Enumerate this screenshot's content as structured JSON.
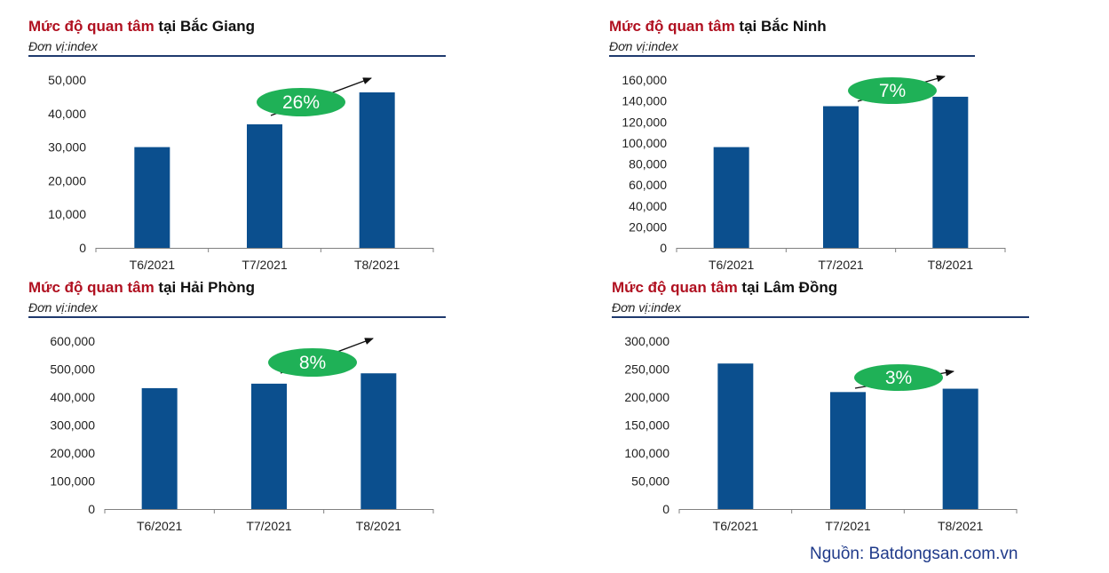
{
  "panels": [
    {
      "title_highlight": "Mức độ quan tâm",
      "title_rest": " tại Bắc Giang",
      "unit": "Đơn vị:index",
      "growth_label": "26%"
    },
    {
      "title_highlight": "Mức độ quan tâm",
      "title_rest": " tại Bắc Ninh",
      "unit": "Đơn vị:index",
      "growth_label": "7%"
    },
    {
      "title_highlight": "Mức độ quan tâm",
      "title_rest": " tại Hải Phòng",
      "unit": "Đơn vị:index",
      "growth_label": "8%"
    },
    {
      "title_highlight": "Mức độ quan tâm",
      "title_rest": " tại Lâm Đồng",
      "unit": "Đơn vị:index",
      "growth_label": "3%"
    }
  ],
  "source": "Nguồn: Batdongsan.com.vn",
  "colors": {
    "bar": "#0b4f8e",
    "title_highlight": "#b01020",
    "rule": "#1f3a6e",
    "growth_ellipse": "#1fb157",
    "source_text": "#1f3a8a"
  },
  "chart_data": [
    {
      "type": "bar",
      "title": "Mức độ quan tâm tại Bắc Giang",
      "categories": [
        "T6/2021",
        "T7/2021",
        "T8/2021"
      ],
      "values": [
        30000,
        36800,
        46300
      ],
      "ylim": [
        0,
        50000
      ],
      "yticks": [
        0,
        10000,
        20000,
        30000,
        40000,
        50000
      ],
      "ytick_labels": [
        "0",
        "10,000",
        "20,000",
        "30,000",
        "40,000",
        "50,000"
      ],
      "annotation": "26%",
      "grid": false
    },
    {
      "type": "bar",
      "title": "Mức độ quan tâm tại Bắc Ninh",
      "categories": [
        "T6/2021",
        "T7/2021",
        "T8/2021"
      ],
      "values": [
        96000,
        135000,
        144000
      ],
      "ylim": [
        0,
        160000
      ],
      "yticks": [
        0,
        20000,
        40000,
        60000,
        80000,
        100000,
        120000,
        140000,
        160000
      ],
      "ytick_labels": [
        "0",
        "20,000",
        "40,000",
        "60,000",
        "80,000",
        "100,000",
        "120,000",
        "140,000",
        "160,000"
      ],
      "annotation": "7%",
      "grid": false
    },
    {
      "type": "bar",
      "title": "Mức độ quan tâm tại Hải Phòng",
      "categories": [
        "T6/2021",
        "T7/2021",
        "T8/2021"
      ],
      "values": [
        432000,
        448000,
        485000
      ],
      "ylim": [
        0,
        600000
      ],
      "yticks": [
        0,
        100000,
        200000,
        300000,
        400000,
        500000,
        600000
      ],
      "ytick_labels": [
        "0",
        "100,000",
        "200,000",
        "300,000",
        "400,000",
        "500,000",
        "600,000"
      ],
      "annotation": "8%",
      "grid": false
    },
    {
      "type": "bar",
      "title": "Mức độ quan tâm tại Lâm Đồng",
      "categories": [
        "T6/2021",
        "T7/2021",
        "T8/2021"
      ],
      "values": [
        260000,
        209000,
        215000
      ],
      "ylim": [
        0,
        300000
      ],
      "yticks": [
        0,
        50000,
        100000,
        150000,
        200000,
        250000,
        300000
      ],
      "ytick_labels": [
        "0",
        "50,000",
        "100,000",
        "150,000",
        "200,000",
        "250,000",
        "300,000"
      ],
      "annotation": "3%",
      "grid": false
    }
  ]
}
